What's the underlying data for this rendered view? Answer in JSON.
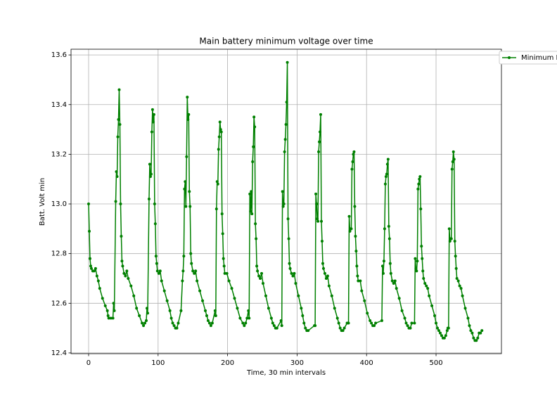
{
  "chart_data": {
    "type": "line",
    "title": "Main battery minimum voltage over time",
    "xlabel": "Time, 30 min intervals",
    "ylabel": "Batt. Volt min",
    "grid": true,
    "legend": "outside upper right",
    "xlim": [
      -25.3,
      594.1
    ],
    "ylim": [
      12.397,
      13.623
    ],
    "xticks": [
      0,
      100,
      200,
      300,
      400,
      500
    ],
    "yticks": [
      12.4,
      12.6,
      12.8,
      {
        "value": 13,
        "label": "13.0"
      },
      13.2,
      13.4,
      13.6
    ],
    "x": [
      0,
      1,
      2,
      3,
      4,
      6,
      8,
      10,
      12,
      14,
      16,
      20,
      24,
      27,
      28,
      29,
      32,
      35,
      36,
      37,
      39,
      40,
      41,
      42,
      43,
      44,
      45,
      46,
      47,
      48,
      49,
      51,
      53,
      55,
      57,
      61,
      65,
      69,
      73,
      77,
      79,
      81,
      83,
      84,
      85,
      87,
      88,
      89,
      90,
      91,
      92,
      93,
      94,
      95,
      96,
      97,
      98,
      99,
      101,
      103,
      105,
      109,
      113,
      117,
      119,
      121,
      123,
      125,
      127,
      129,
      133,
      135,
      136,
      137,
      138,
      139,
      140,
      141,
      142,
      143,
      144,
      145,
      146,
      147,
      148,
      150,
      152,
      154,
      156,
      160,
      164,
      168,
      170,
      172,
      174,
      176,
      178,
      182,
      183,
      184,
      185,
      186,
      187,
      188,
      189,
      190,
      191,
      192,
      193,
      194,
      195,
      196,
      199,
      202,
      206,
      210,
      214,
      218,
      222,
      224,
      226,
      228,
      230,
      231,
      232,
      233,
      234,
      235,
      236,
      237,
      238,
      239,
      240,
      241,
      242,
      243,
      245,
      247,
      249,
      251,
      255,
      259,
      263,
      265,
      267,
      269,
      271,
      277,
      278,
      279,
      280,
      281,
      282,
      283,
      284,
      285,
      286,
      287,
      288,
      289,
      290,
      292,
      294,
      296,
      298,
      302,
      306,
      308,
      310,
      312,
      314,
      316,
      325,
      326,
      327,
      328,
      329,
      330,
      331,
      332,
      333,
      334,
      335,
      336,
      337,
      338,
      340,
      342,
      344,
      346,
      350,
      354,
      358,
      360,
      362,
      364,
      366,
      368,
      372,
      374,
      375,
      376,
      377,
      378,
      379,
      380,
      381,
      382,
      383,
      384,
      385,
      386,
      387,
      388,
      391,
      393,
      397,
      401,
      405,
      407,
      409,
      411,
      413,
      422,
      423,
      424,
      425,
      426,
      427,
      428,
      429,
      430,
      431,
      432,
      433,
      434,
      435,
      437,
      439,
      441,
      443,
      447,
      451,
      455,
      457,
      459,
      461,
      463,
      465,
      469,
      470,
      471,
      472,
      473,
      474,
      475,
      476,
      477,
      478,
      479,
      480,
      481,
      482,
      484,
      486,
      488,
      490,
      494,
      498,
      500,
      502,
      504,
      506,
      508,
      510,
      512,
      514,
      516,
      517,
      518,
      519,
      520,
      521,
      522,
      523,
      524,
      525,
      526,
      527,
      528,
      529,
      530,
      532,
      534,
      536,
      538,
      542,
      546,
      548,
      550,
      552,
      554,
      556,
      558,
      560,
      562,
      564,
      566
    ],
    "series": [
      {
        "name": "Minimum Batt. Volt",
        "color": "#008000",
        "values": [
          13.0,
          12.89,
          12.78,
          12.75,
          12.74,
          12.73,
          12.73,
          12.74,
          12.71,
          12.69,
          12.66,
          12.62,
          12.59,
          12.57,
          12.55,
          12.54,
          12.54,
          12.54,
          12.6,
          12.57,
          13.01,
          13.13,
          13.11,
          13.27,
          13.34,
          13.46,
          13.32,
          13.0,
          12.87,
          12.77,
          12.75,
          12.72,
          12.71,
          12.73,
          12.7,
          12.67,
          12.63,
          12.58,
          12.55,
          12.52,
          12.51,
          12.52,
          12.53,
          12.58,
          12.56,
          13.02,
          13.16,
          13.11,
          13.12,
          13.29,
          13.38,
          13.33,
          13.36,
          13.0,
          12.92,
          12.79,
          12.76,
          12.73,
          12.72,
          12.73,
          12.69,
          12.65,
          12.61,
          12.57,
          12.54,
          12.52,
          12.51,
          12.5,
          12.5,
          12.52,
          12.57,
          12.69,
          12.73,
          12.79,
          13.06,
          13.09,
          12.99,
          13.19,
          13.43,
          13.34,
          13.36,
          13.05,
          12.99,
          12.8,
          12.76,
          12.73,
          12.72,
          12.73,
          12.69,
          12.65,
          12.61,
          12.57,
          12.55,
          12.53,
          12.52,
          12.51,
          12.52,
          12.57,
          12.55,
          12.98,
          13.09,
          13.08,
          13.22,
          13.27,
          13.33,
          13.3,
          13.29,
          12.96,
          12.88,
          12.78,
          12.75,
          12.72,
          12.72,
          12.69,
          12.66,
          12.62,
          12.58,
          12.54,
          12.52,
          12.51,
          12.52,
          12.54,
          12.57,
          12.54,
          13.04,
          12.97,
          13.05,
          12.96,
          13.17,
          13.23,
          13.35,
          13.31,
          12.92,
          12.86,
          12.75,
          12.73,
          12.71,
          12.7,
          12.72,
          12.68,
          12.63,
          12.58,
          12.54,
          12.52,
          12.51,
          12.5,
          12.5,
          12.53,
          12.51,
          13.05,
          12.99,
          13.0,
          13.21,
          13.26,
          13.32,
          13.41,
          13.57,
          12.94,
          12.86,
          12.76,
          12.74,
          12.72,
          12.71,
          12.72,
          12.68,
          12.63,
          12.58,
          12.55,
          12.52,
          12.5,
          12.49,
          12.49,
          12.51,
          12.51,
          13.04,
          13.0,
          12.94,
          12.93,
          13.21,
          13.25,
          13.29,
          13.36,
          12.93,
          12.85,
          12.76,
          12.74,
          12.72,
          12.7,
          12.71,
          12.67,
          12.63,
          12.58,
          12.54,
          12.52,
          12.5,
          12.49,
          12.49,
          12.5,
          12.52,
          12.52,
          12.95,
          12.89,
          12.9,
          12.9,
          13.14,
          13.17,
          13.2,
          13.21,
          12.99,
          12.87,
          12.81,
          12.75,
          12.71,
          12.69,
          12.69,
          12.65,
          12.61,
          12.56,
          12.53,
          12.52,
          12.51,
          12.51,
          12.52,
          12.53,
          12.75,
          12.72,
          12.77,
          12.9,
          13.08,
          13.11,
          13.12,
          13.16,
          13.18,
          12.91,
          12.86,
          12.76,
          12.72,
          12.69,
          12.68,
          12.69,
          12.66,
          12.62,
          12.57,
          12.54,
          12.52,
          12.51,
          12.5,
          12.5,
          12.52,
          12.52,
          12.78,
          12.74,
          12.73,
          12.77,
          13.06,
          13.08,
          13.1,
          13.11,
          12.98,
          12.83,
          12.78,
          12.73,
          12.7,
          12.68,
          12.67,
          12.66,
          12.63,
          12.59,
          12.55,
          12.52,
          12.5,
          12.49,
          12.48,
          12.47,
          12.46,
          12.46,
          12.47,
          12.49,
          12.5,
          12.5,
          12.9,
          12.85,
          12.86,
          12.86,
          13.14,
          13.17,
          13.21,
          13.18,
          12.85,
          12.79,
          12.74,
          12.7,
          12.69,
          12.67,
          12.66,
          12.63,
          12.58,
          12.54,
          12.51,
          12.49,
          12.48,
          12.46,
          12.45,
          12.45,
          12.46,
          12.48,
          12.48,
          12.49
        ]
      }
    ]
  }
}
